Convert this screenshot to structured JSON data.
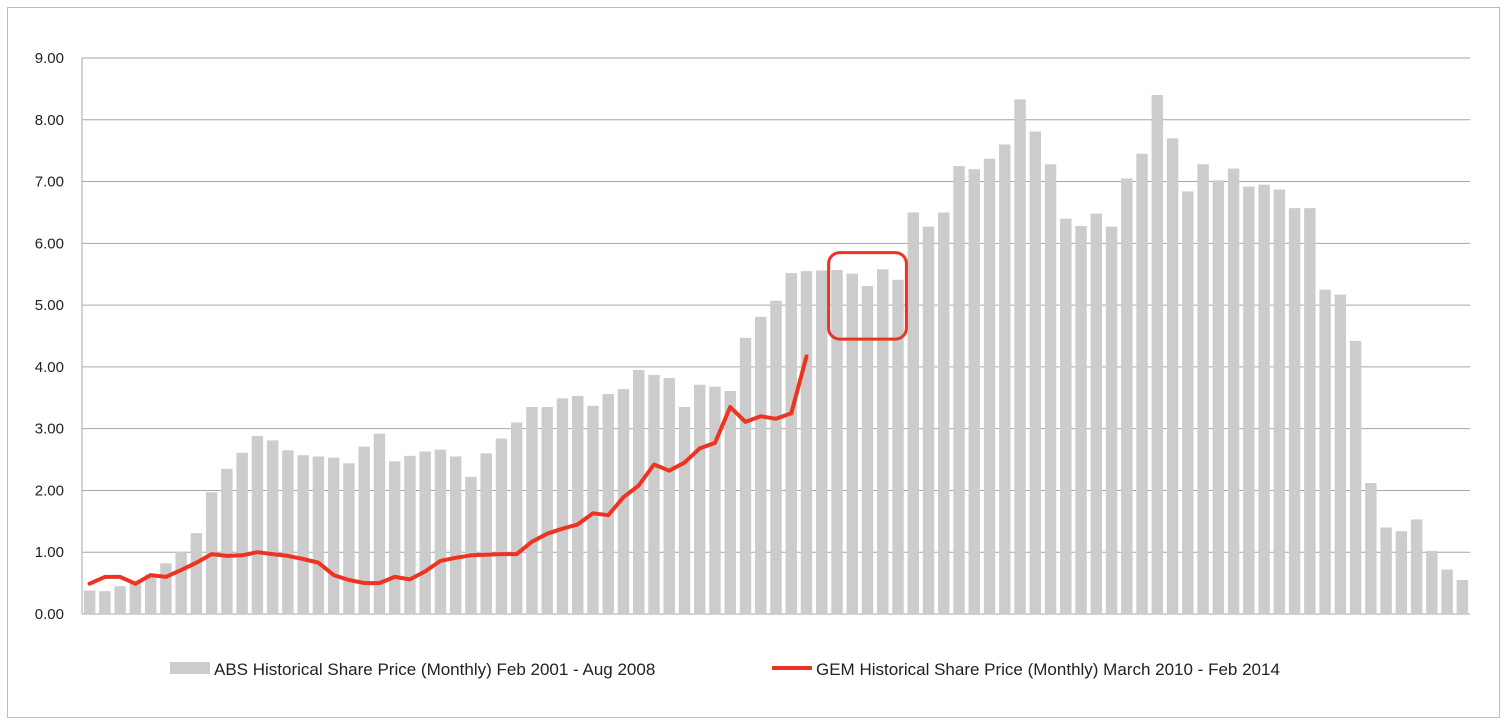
{
  "chart_data": {
    "type": "bar",
    "ylim": [
      0,
      9
    ],
    "y_ticks": [
      "0.00",
      "1.00",
      "2.00",
      "3.00",
      "4.00",
      "5.00",
      "6.00",
      "7.00",
      "8.00",
      "9.00"
    ],
    "grid": true,
    "legend_placement": "bottom",
    "series": [
      {
        "name": "ABS Historical Share Price (Monthly) Feb 2001 - Aug 2008",
        "type": "bar",
        "color": "#cccccc",
        "values": [
          0.38,
          0.37,
          0.45,
          0.53,
          0.64,
          0.82,
          1.01,
          1.31,
          1.97,
          2.35,
          2.61,
          2.88,
          2.81,
          2.65,
          2.57,
          2.55,
          2.53,
          2.44,
          2.71,
          2.92,
          2.47,
          2.56,
          2.63,
          2.66,
          2.55,
          2.22,
          2.6,
          2.84,
          3.1,
          3.35,
          3.35,
          3.49,
          3.53,
          3.37,
          3.56,
          3.64,
          3.95,
          3.87,
          3.82,
          3.35,
          3.71,
          3.68,
          3.61,
          4.47,
          4.81,
          5.07,
          5.52,
          5.55,
          5.56,
          5.57,
          5.51,
          5.31,
          5.58,
          5.41,
          6.5,
          6.27,
          6.5,
          7.25,
          7.2,
          7.37,
          7.6,
          8.33,
          7.81,
          7.28,
          6.4,
          6.28,
          6.48,
          6.27,
          7.05,
          7.45,
          8.4,
          7.7,
          6.84,
          7.28,
          7.02,
          7.21,
          6.92,
          6.95,
          6.87,
          6.57,
          6.57,
          5.25,
          5.17,
          4.42,
          2.12,
          1.4,
          1.34,
          1.53,
          1.02,
          0.72,
          0.55
        ]
      },
      {
        "name": "GEM Historical Share Price (Monthly) March 2010 - Feb 2014",
        "type": "line",
        "color": "#ee3322",
        "values": [
          0.49,
          0.6,
          0.6,
          0.49,
          0.63,
          0.6,
          0.71,
          0.83,
          0.97,
          0.94,
          0.95,
          1.0,
          0.97,
          0.94,
          0.89,
          0.83,
          0.63,
          0.55,
          0.5,
          0.5,
          0.6,
          0.56,
          0.69,
          0.86,
          0.91,
          0.95,
          0.96,
          0.97,
          0.97,
          1.17,
          1.3,
          1.38,
          1.45,
          1.63,
          1.6,
          1.89,
          2.08,
          2.42,
          2.32,
          2.45,
          2.68,
          2.77,
          3.35,
          3.11,
          3.2,
          3.16,
          3.25,
          4.17
        ]
      }
    ],
    "annotation": {
      "type": "rounded-rectangle",
      "color": "#ee3322",
      "start_index": 49,
      "end_index": 53,
      "y_range": [
        4.45,
        5.85
      ]
    }
  }
}
